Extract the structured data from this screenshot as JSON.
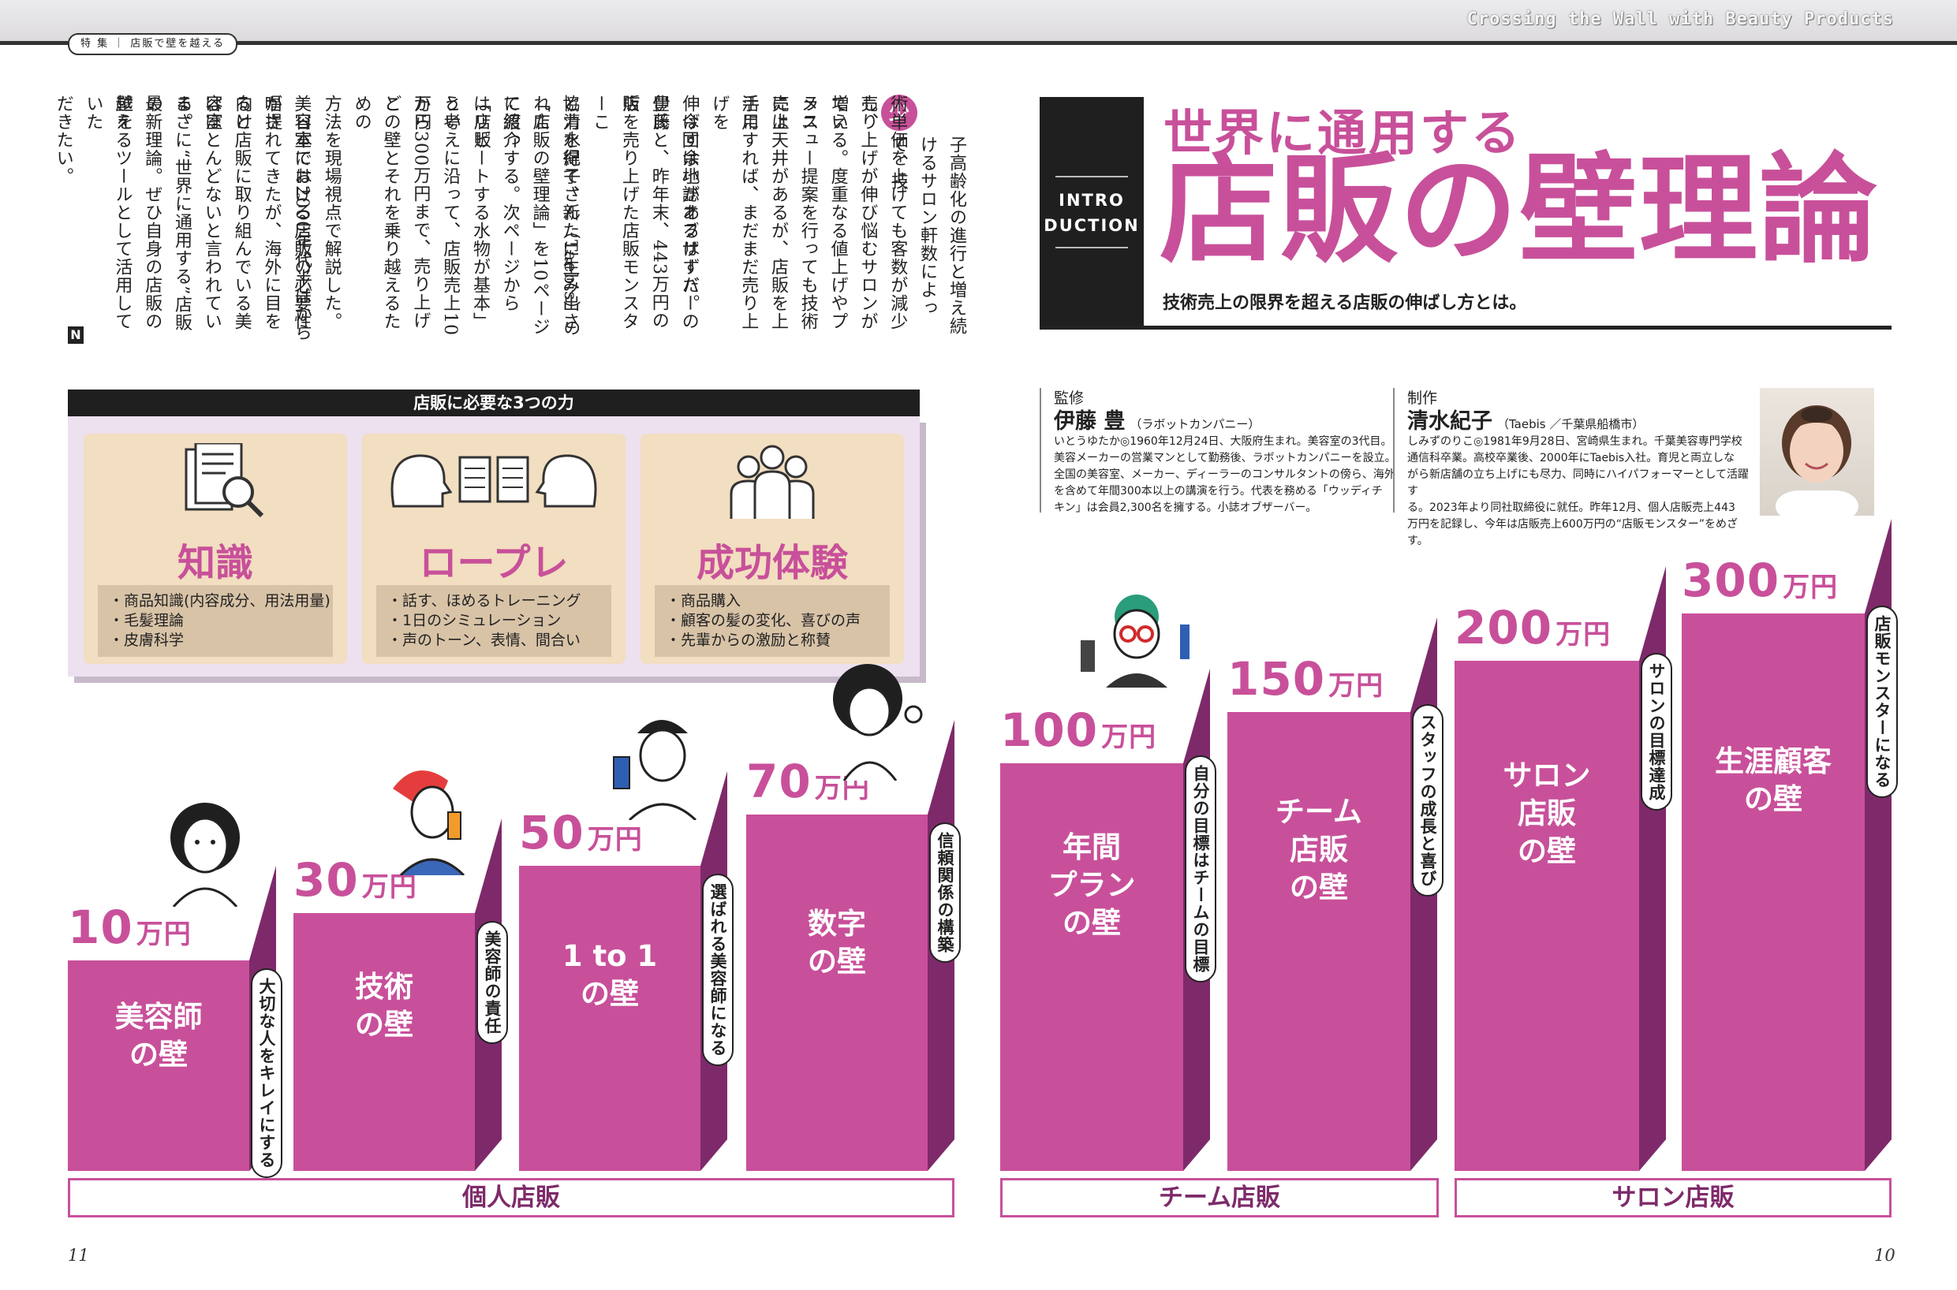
{
  "header": {
    "series_title": "Crossing the Wall with Beauty Products",
    "breadcrumb": "特 集 ｜ 店販で壁を越える"
  },
  "article": {
    "drop_cap": "少",
    "columns": [
      "子高齢化の進行と増え続けるサロン軒数によって、技",
      "術単価を上げても客数が減少し、",
      "売り上げが伸び悩むサロンが増え",
      "ている。度重なる値上げやプラス",
      "メニュー提案を行っても技術売上",
      "には天井があるが、店販を上手に",
      "活用すれば、まだまだ売り上げを",
      "伸ばす余地があるはずだ。",
      "　今回は小誌オブザーバーの伊藤",
      "豊氏と、昨年末、443万円の店",
      "販を売り上げた店販モンスターこ",
      "と清水紀子さん（Taebis）の",
      "協力を得て、新たに生み出された",
      "「店販の壁理論」を10ページに渡っ",
      "て紹介する。次ページから「店販",
      "はリピートする水物が基本」とい",
      "う考えに沿って、店販売上10万円",
      "から300万円まで、売り上げご",
      "との壁とそれを乗り越えるための",
      "方法を現場視点で解説した。",
      "　日本では2000年代半ばから",
      "美容室における店販の必要性が提",
      "唱されてきたが、海外に目を向け",
      "ると店販に取り組んでいる美容室",
      "はほとんどないと言われている。",
      "まさに“世界に通用する”店販の",
      "最新理論。ぜひ自身の店販の壁を",
      "越えるツールとして活用していた",
      "だきたい。"
    ],
    "end_mark": "N"
  },
  "intro": {
    "label_line1": "INTRO",
    "label_line2": "DUCTION",
    "title_line1": "世界に通用する",
    "title_line2": "店販の壁理論",
    "subtitle": "技術売上の限界を超える店販の伸ばし方とは。"
  },
  "supervisor": {
    "label": "監修",
    "name": "伊藤 豊",
    "affiliation": "（ラボットカンパニー）",
    "bio": [
      "いとうゆたか◎1960年12月24日、大阪府生まれ。美容室の3代目。",
      "美容メーカーの営業マンとして勤務後、ラボットカンパニーを設立。",
      "全国の美容室、メーカー、ディーラーのコンサルタントの傍ら、海外",
      "を含めて年間300本以上の講演を行う。代表を務める「ウッディチ",
      "キン」は会員2,300名を擁する。小誌オブザーバー。"
    ]
  },
  "producer": {
    "label": "制作",
    "name": "清水紀子",
    "affiliation": "（Taebis ／千葉県船橋市）",
    "bio": [
      "しみずのりこ◎1981年9月28日、宮崎県生まれ。千葉美容専門学校",
      "通信科卒業。高校卒業後、2000年にTaebis入社。育児と両立しな",
      "がら新店舗の立ち上げにも尽力、同時にハイパフォーマーとして活躍す",
      "る。2023年より同社取締役に就任。昨年12月、個人店販売上443",
      "万円を記録し、今年は店販売上600万円の“店販モンスター”をめざす。"
    ]
  },
  "powers": {
    "header": "店販に必要な3つの力",
    "cards": [
      {
        "icon": "document-magnifier-icon",
        "title": "知識",
        "items": [
          "・商品知識(内容成分、用法用量)",
          "・毛髪理論",
          "・皮膚科学"
        ]
      },
      {
        "icon": "roleplay-heads-icon",
        "title": "ロープレ",
        "items": [
          "・話す、ほめるトレーニング",
          "・1日のシミュレーション",
          "・声のトーン、表情、間合い"
        ]
      },
      {
        "icon": "people-group-icon",
        "title": "成功体験",
        "items": [
          "・商品購入",
          "・顧客の髪の変化、喜びの声",
          "・先輩からの激励と称賛"
        ]
      }
    ]
  },
  "stairs": {
    "unit": "万円",
    "colors": {
      "front": "#c8509a",
      "side": "#7e2a6a"
    },
    "steps": [
      {
        "amount": "10",
        "wall": [
          "美容師",
          "の壁"
        ],
        "badge": "大切な人をキレイにする"
      },
      {
        "amount": "30",
        "wall": [
          "技術",
          "の壁"
        ],
        "badge": "美容師の責任"
      },
      {
        "amount": "50",
        "wall": [
          "1 to 1",
          "の壁"
        ],
        "badge": "選ばれる美容師になる"
      },
      {
        "amount": "70",
        "wall": [
          "数字",
          "の壁"
        ],
        "badge": "信頼関係の構築"
      },
      {
        "amount": "100",
        "wall": [
          "年間",
          "プラン",
          "の壁"
        ],
        "badge": "自分の目標はチームの目標"
      },
      {
        "amount": "150",
        "wall": [
          "チーム",
          "店販",
          "の壁"
        ],
        "badge": "スタッフの成長と喜び"
      },
      {
        "amount": "200",
        "wall": [
          "サロン",
          "店販",
          "の壁"
        ],
        "badge": "サロンの目標達成"
      },
      {
        "amount": "300",
        "wall": [
          "生涯顧客",
          "の壁"
        ],
        "badge": "店販モンスターになる"
      }
    ],
    "groups": [
      "個人店販",
      "チーム店販",
      "サロン店販"
    ]
  },
  "pages": {
    "left": "11",
    "right": "10"
  }
}
